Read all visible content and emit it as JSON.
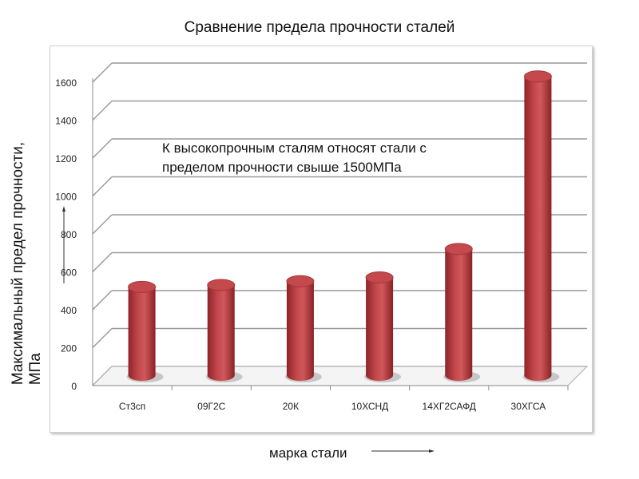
{
  "chart_data": {
    "type": "bar",
    "style": "3d-cylinder",
    "title": "Сравнение предела прочности сталей",
    "xlabel": "марка стали",
    "ylabel": "Максимальный предел прочности, МПа",
    "categories": [
      "Ст3сп",
      "09Г2С",
      "20К",
      "10ХСНД",
      "14ХГ2САФД",
      "30ХГСА"
    ],
    "values": [
      470,
      480,
      500,
      520,
      670,
      1580
    ],
    "yticks": [
      "0",
      "200",
      "400",
      "600",
      "800",
      "1000",
      "1200",
      "1400",
      "1600"
    ],
    "ylim": [
      0,
      1600
    ],
    "grid": true,
    "bar_color": "#c0464a",
    "annotation": [
      "К высокопрочным сталям относят стали с",
      "пределом прочности свыше 1500МПа"
    ]
  }
}
